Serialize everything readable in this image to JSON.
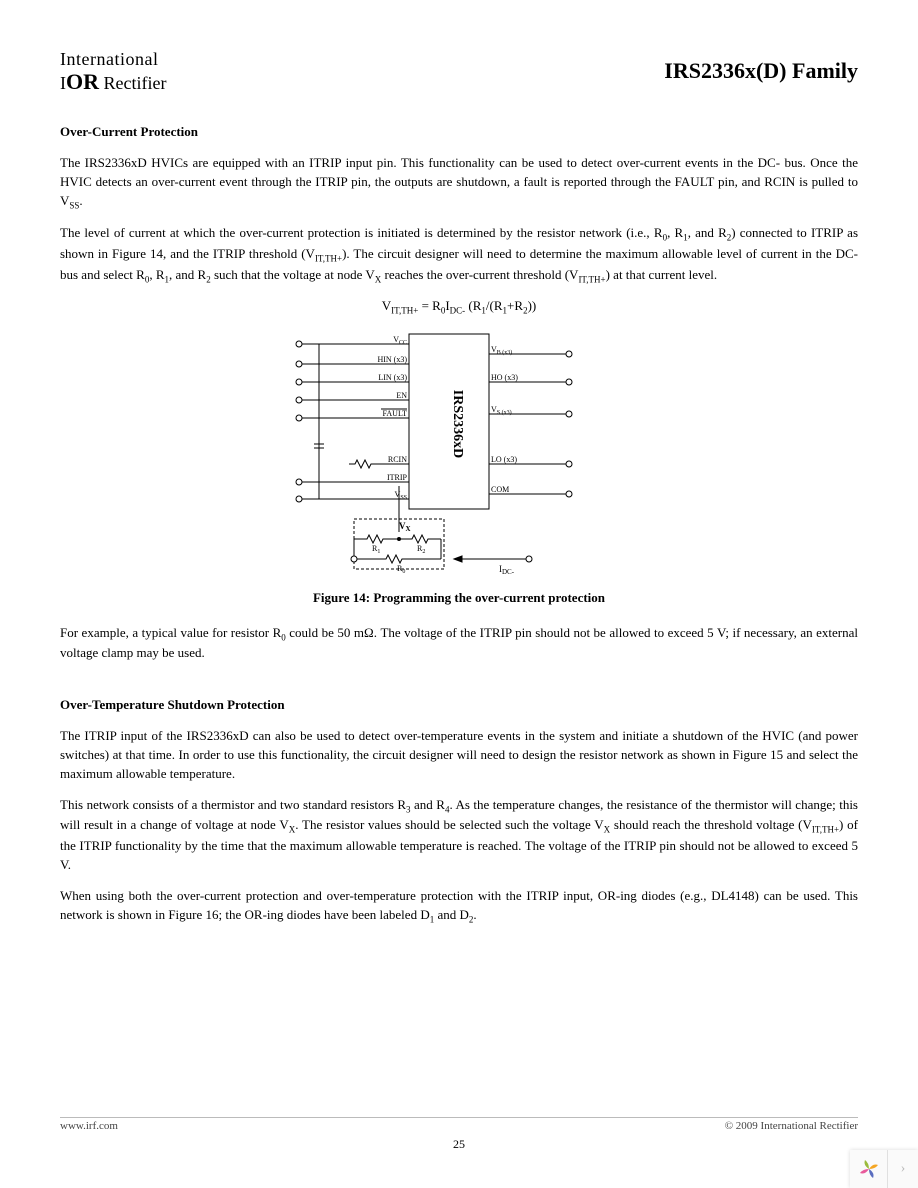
{
  "header": {
    "logo_top": "International",
    "logo_bottom_prefix": "I",
    "logo_bottom_mid": "OR",
    "logo_bottom_suffix": " Rectifier",
    "family_title": "IRS2336x(D) Family"
  },
  "section1": {
    "heading": "Over-Current Protection",
    "p1": "The IRS2336xD HVICs are equipped with an ITRIP input pin.  This functionality can be used to detect over-current events in the DC- bus.  Once the HVIC detects an over-current event through the ITRIP pin, the outputs are shutdown, a fault is reported through the FAULT pin, and RCIN is pulled to V",
    "p1_sub": "SS",
    "p1_end": ".",
    "p2a": "The level of current at which the over-current protection is initiated is determined by the resistor network (i.e., R",
    "p2a_s1": "0",
    "p2b": ", R",
    "p2b_s1": "1",
    "p2c": ", and R",
    "p2c_s1": "2",
    "p2d": ") connected to ITRIP as shown in Figure 14, and the ITRIP threshold (V",
    "p2d_s1": "IT,TH+",
    "p2e": ").  The circuit designer will need to determine the maximum allowable level of current in the DC- bus and select R",
    "p2e_s1": "0",
    "p2f": ", R",
    "p2f_s1": "1",
    "p2g": ", and R",
    "p2g_s1": "2",
    "p2h": " such that the voltage at node V",
    "p2h_s1": "X",
    "p2i": " reaches the over-current threshold (V",
    "p2i_s1": "IT,TH+",
    "p2j": ") at that current level.",
    "equation_lhs": "V",
    "equation_lhs_sub": "IT,TH+",
    "equation_rhs": " = R",
    "equation_r0": "0",
    "equation_idc": "I",
    "equation_idc_sub": "DC-",
    "equation_paren": " (R",
    "equation_r1": "1",
    "equation_div": "/(R",
    "equation_r1b": "1",
    "equation_plus": "+R",
    "equation_r2": "2",
    "equation_end": "))",
    "caption": "Figure 14: Programming the over-current protection",
    "p3a": "For example, a typical value for resistor R",
    "p3a_s1": "0",
    "p3b": " could be 50 mΩ.  The voltage of the ITRIP pin should not be allowed to exceed 5 V; if necessary, an external voltage clamp may be used."
  },
  "diagram": {
    "chip_label": "IRS2336xD",
    "pins_left": [
      "V",
      "HIN (x3)",
      "LIN (x3)",
      "EN",
      "FAULT",
      "RCIN",
      "ITRIP",
      "V"
    ],
    "pins_left_sub": [
      "CC",
      "",
      "",
      "",
      "",
      "",
      "",
      "SS"
    ],
    "pins_right": [
      "V",
      "HO (x3)",
      "V",
      "LO (x3)",
      "COM"
    ],
    "pins_right_sub": [
      "B (x3)",
      "",
      "S (x3)",
      "",
      ""
    ],
    "vx_label": "V",
    "vx_sub": "X",
    "r_labels": [
      "R",
      "R",
      "R"
    ],
    "r_subs": [
      "1",
      "2",
      "0"
    ],
    "idc_label": "I",
    "idc_sub": "DC-",
    "stroke": "#000000",
    "bg": "#ffffff"
  },
  "section2": {
    "heading": "Over-Temperature Shutdown Protection",
    "p1": "The ITRIP input of the IRS2336xD can also be used to detect over-temperature events in the system and initiate a shutdown of the HVIC (and power switches) at that time.  In order to use this functionality, the circuit designer will need to design the resistor network as shown in Figure 15 and select the maximum allowable temperature.",
    "p2a": "This network consists of a thermistor and two standard resistors R",
    "p2a_s1": "3",
    "p2b": " and R",
    "p2b_s1": "4",
    "p2c": ".  As the temperature changes, the resistance of the thermistor will change; this will result in a change of voltage at node V",
    "p2c_s1": "X",
    "p2d": ".  The resistor values should be selected such the voltage V",
    "p2d_s1": "X",
    "p2e": " should reach the threshold voltage (V",
    "p2e_s1": "IT,TH+",
    "p2f": ") of the ITRIP functionality by the time that the maximum allowable temperature is reached.  The voltage of the ITRIP pin should not be allowed to exceed 5 V.",
    "p3a": " When using both the over-current protection and over-temperature protection with the ITRIP input, OR-ing diodes (e.g., DL4148) can be used.  This network is shown in Figure 16; the OR-ing diodes have been labeled D",
    "p3a_s1": "1",
    "p3b": " and D",
    "p3b_s1": "2",
    "p3c": "."
  },
  "footer": {
    "url": "www.irf.com",
    "copyright": "© 2009 International Rectifier",
    "page": "25"
  },
  "nav_widget_colors": [
    "#f5a623",
    "#9bbb3c",
    "#5a6dbf",
    "#e85a9b"
  ]
}
